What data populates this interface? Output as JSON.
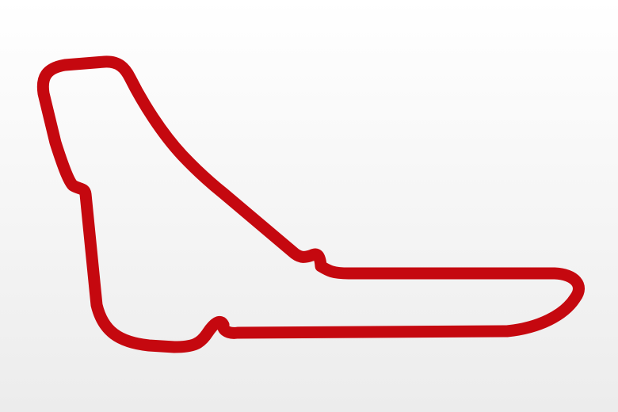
{
  "map": {
    "subject": "racing-circuit-outline",
    "track_color": "#c5080f",
    "background_top": "#ffffff",
    "background_bottom": "#ececec"
  }
}
